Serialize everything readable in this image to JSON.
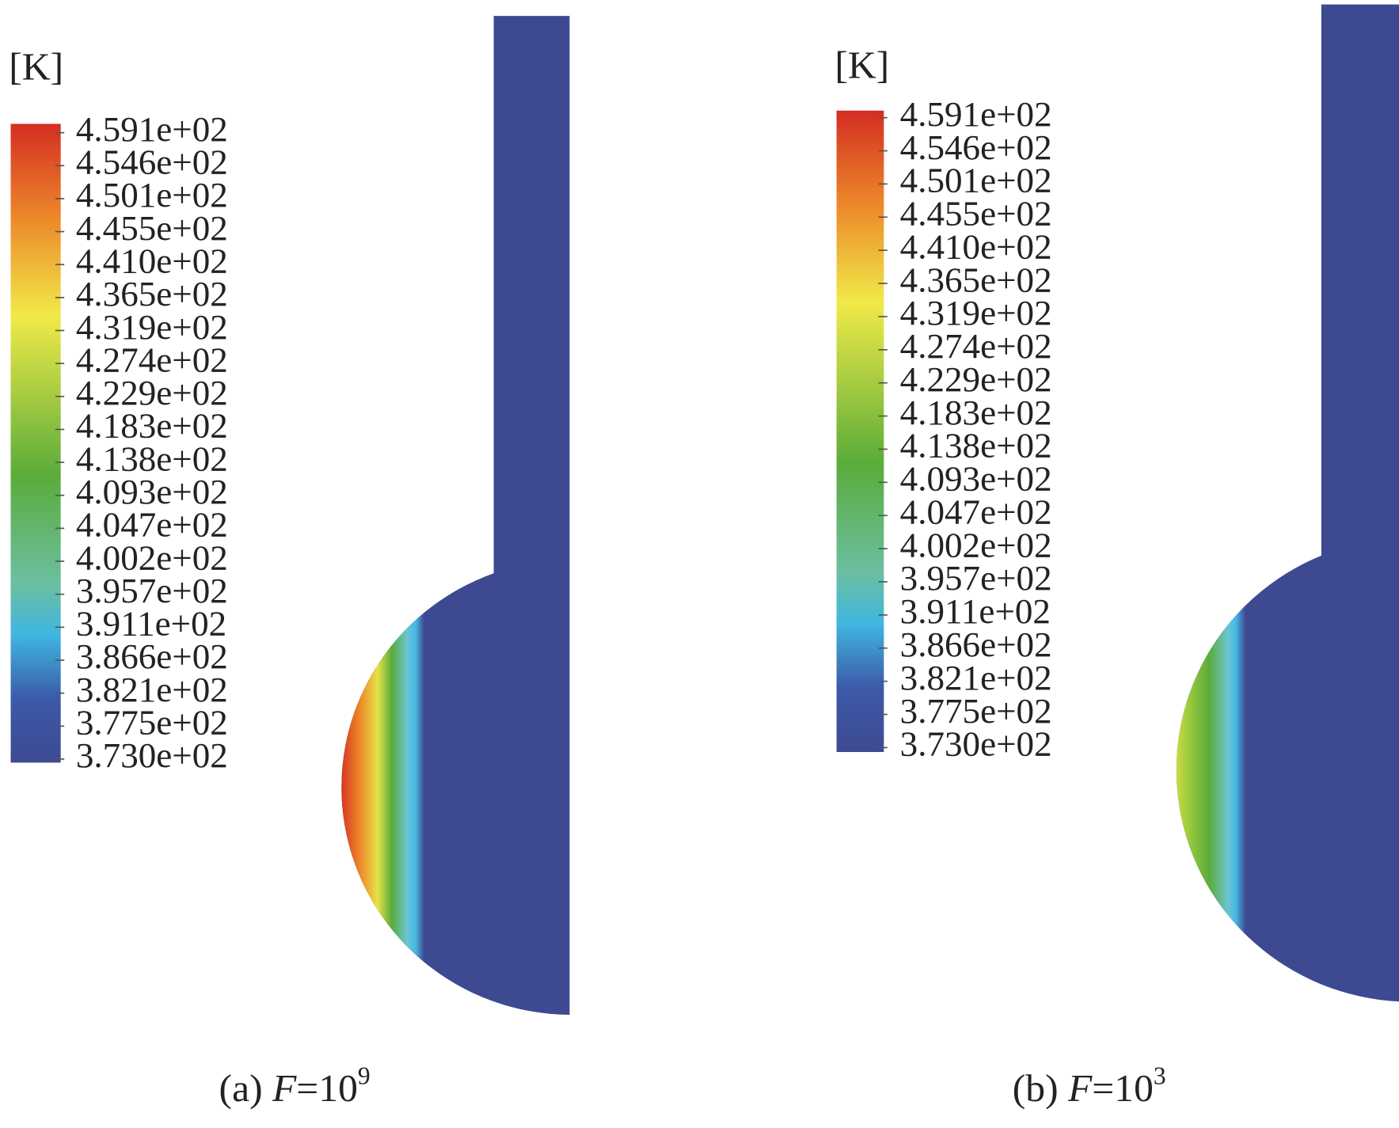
{
  "panels": [
    {
      "unit": "[K]",
      "colorbar_labels": [
        "4.591e+02",
        "4.546e+02",
        "4.501e+02",
        "4.455e+02",
        "4.410e+02",
        "4.365e+02",
        "4.319e+02",
        "4.274e+02",
        "4.229e+02",
        "4.183e+02",
        "4.138e+02",
        "4.093e+02",
        "4.047e+02",
        "4.002e+02",
        "3.957e+02",
        "3.911e+02",
        "3.866e+02",
        "3.821e+02",
        "3.775e+02",
        "3.730e+02"
      ],
      "caption": {
        "label": "(a)",
        "variable": "F",
        "equals": "=10",
        "exponent": "9"
      }
    },
    {
      "unit": "[K]",
      "colorbar_labels": [
        "4.591e+02",
        "4.546e+02",
        "4.501e+02",
        "4.455e+02",
        "4.410e+02",
        "4.365e+02",
        "4.319e+02",
        "4.274e+02",
        "4.229e+02",
        "4.183e+02",
        "4.138e+02",
        "4.093e+02",
        "4.047e+02",
        "4.002e+02",
        "3.957e+02",
        "3.911e+02",
        "3.866e+02",
        "3.821e+02",
        "3.775e+02",
        "3.730e+02"
      ],
      "caption": {
        "label": "(b)",
        "variable": "F",
        "equals": "=10",
        "exponent": "3"
      }
    }
  ]
}
